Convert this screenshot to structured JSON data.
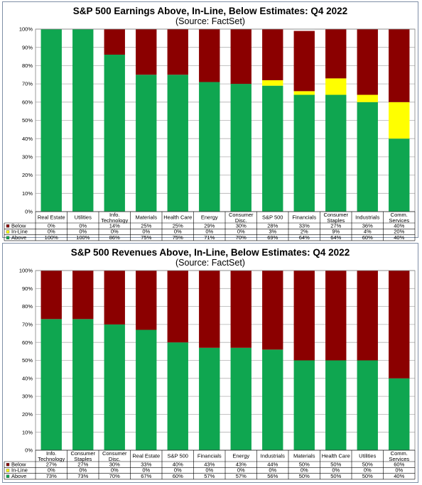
{
  "colors": {
    "above": "#0fa650",
    "inline": "#ffff00",
    "below": "#8b0000",
    "grid": "#b0b0b0",
    "frame": "#7f8fa6"
  },
  "chart_data": [
    {
      "type": "bar",
      "stacked": true,
      "title": "S&P 500 Earnings Above, In-Line, Below Estimates: Q4 2022",
      "subtitle": "(Source: FactSet)",
      "ylim": [
        0,
        100
      ],
      "yticks": [
        "0%",
        "10%",
        "20%",
        "30%",
        "40%",
        "50%",
        "60%",
        "70%",
        "80%",
        "90%",
        "100%"
      ],
      "legend_position": "data-table-left",
      "categories": [
        [
          "Real Estate"
        ],
        [
          "Utilities"
        ],
        [
          "Info.",
          "Technology"
        ],
        [
          "Materials"
        ],
        [
          "Health Care"
        ],
        [
          "Energy"
        ],
        [
          "Consumer",
          "Disc."
        ],
        [
          "S&P 500"
        ],
        [
          "Financials"
        ],
        [
          "Consumer",
          "Staples"
        ],
        [
          "Industrials"
        ],
        [
          "Comm.",
          "Services"
        ]
      ],
      "series": [
        {
          "name": "Below",
          "key": "below",
          "values": [
            0,
            0,
            14,
            25,
            25,
            29,
            30,
            28,
            33,
            27,
            36,
            40
          ],
          "labels": [
            "0%",
            "0%",
            "14%",
            "25%",
            "25%",
            "29%",
            "30%",
            "28%",
            "33%",
            "27%",
            "36%",
            "40%"
          ]
        },
        {
          "name": "In-Line",
          "key": "inline",
          "values": [
            0,
            0,
            0,
            0,
            0,
            0,
            0,
            3,
            2,
            9,
            4,
            20
          ],
          "labels": [
            "0%",
            "0%",
            "0%",
            "0%",
            "0%",
            "0%",
            "0%",
            "3%",
            "2%",
            "9%",
            "4%",
            "20%"
          ]
        },
        {
          "name": "Above",
          "key": "above",
          "values": [
            100,
            100,
            86,
            75,
            75,
            71,
            70,
            69,
            64,
            64,
            60,
            40
          ],
          "labels": [
            "100%",
            "100%",
            "86%",
            "75%",
            "75%",
            "71%",
            "70%",
            "69%",
            "64%",
            "64%",
            "60%",
            "40%"
          ]
        }
      ]
    },
    {
      "type": "bar",
      "stacked": true,
      "title": "S&P 500 Revenues Above, In-Line, Below Estimates: Q4 2022",
      "subtitle": "(Source: FactSet)",
      "ylim": [
        0,
        100
      ],
      "yticks": [
        "0%",
        "10%",
        "20%",
        "30%",
        "40%",
        "50%",
        "60%",
        "70%",
        "80%",
        "90%",
        "100%"
      ],
      "legend_position": "data-table-left",
      "categories": [
        [
          "Info.",
          "Technology"
        ],
        [
          "Consumer",
          "Staples"
        ],
        [
          "Consumer",
          "Disc."
        ],
        [
          "Real Estate"
        ],
        [
          "S&P 500"
        ],
        [
          "Financials"
        ],
        [
          "Energy"
        ],
        [
          "Industrials"
        ],
        [
          "Materials"
        ],
        [
          "Health Care"
        ],
        [
          "Utilities"
        ],
        [
          "Comm.",
          "Services"
        ]
      ],
      "series": [
        {
          "name": "Below",
          "key": "below",
          "values": [
            27,
            27,
            30,
            33,
            40,
            43,
            43,
            44,
            50,
            50,
            50,
            60
          ],
          "labels": [
            "27%",
            "27%",
            "30%",
            "33%",
            "40%",
            "43%",
            "43%",
            "44%",
            "50%",
            "50%",
            "50%",
            "60%"
          ]
        },
        {
          "name": "In-Line",
          "key": "inline",
          "values": [
            0,
            0,
            0,
            0,
            0,
            0,
            0,
            0,
            0,
            0,
            0,
            0
          ],
          "labels": [
            "0%",
            "0%",
            "0%",
            "0%",
            "0%",
            "0%",
            "0%",
            "0%",
            "0%",
            "0%",
            "0%",
            "0%"
          ]
        },
        {
          "name": "Above",
          "key": "above",
          "values": [
            73,
            73,
            70,
            67,
            60,
            57,
            57,
            56,
            50,
            50,
            50,
            40
          ],
          "labels": [
            "73%",
            "73%",
            "70%",
            "67%",
            "60%",
            "57%",
            "57%",
            "56%",
            "50%",
            "50%",
            "50%",
            "40%"
          ]
        }
      ]
    }
  ]
}
